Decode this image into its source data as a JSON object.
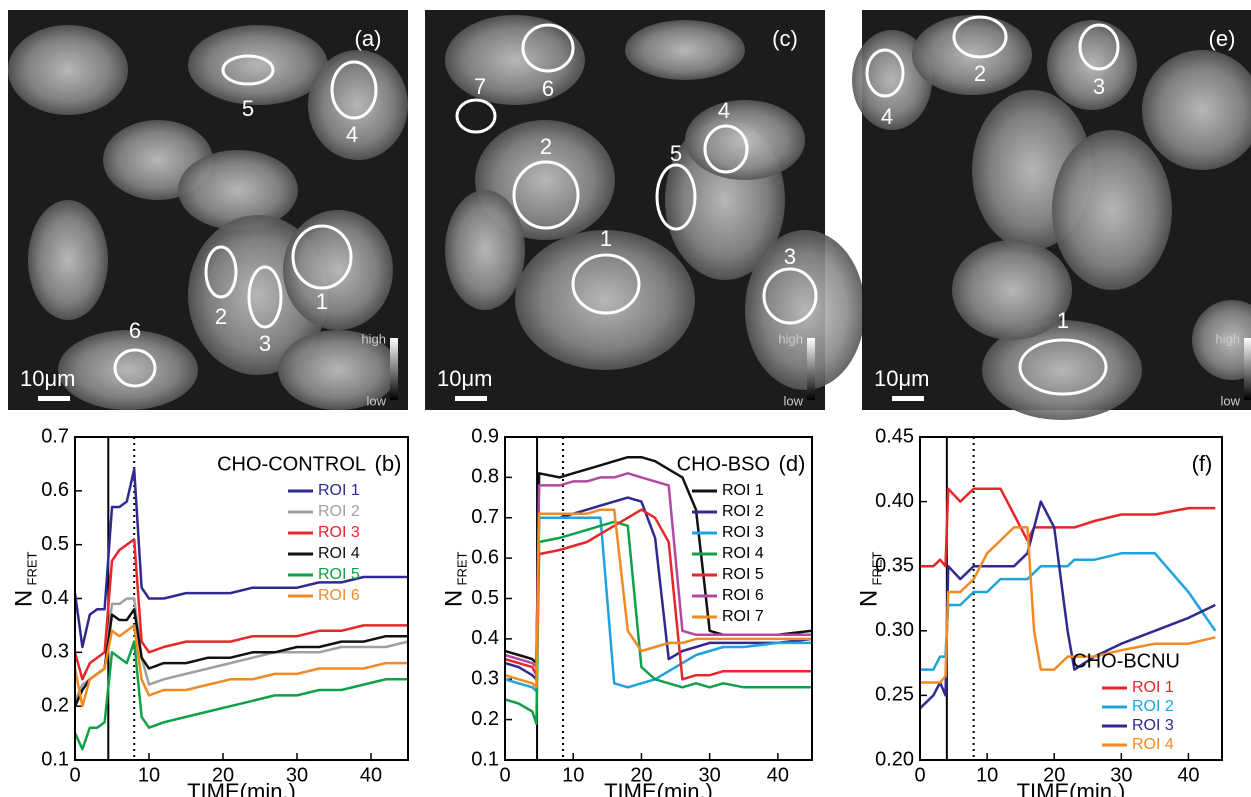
{
  "images": [
    {
      "label": "(a)",
      "rois": [
        "1",
        "2",
        "3",
        "4",
        "5",
        "6"
      ],
      "scale": "10μm",
      "high": "high",
      "low": "low"
    },
    {
      "label": "(c)",
      "rois": [
        "1",
        "2",
        "3",
        "4",
        "5",
        "6",
        "7"
      ],
      "scale": "10μm",
      "high": "high",
      "low": "low"
    },
    {
      "label": "(e)",
      "rois": [
        "1",
        "2",
        "3",
        "4"
      ],
      "scale": "10μm",
      "high": "high",
      "low": "low"
    }
  ],
  "chart_data": [
    {
      "type": "line",
      "panel": "(b)",
      "legend_title": "CHO-CONTROL",
      "legend": "upper right",
      "legend_text_color": null,
      "x_label": "TIME(min.)",
      "y_label": "N",
      "y_label_sub": "FRET",
      "xlim": [
        0,
        45
      ],
      "xticks": [
        0,
        10,
        20,
        30,
        40
      ],
      "ylim": [
        0.1,
        0.7
      ],
      "yticks": [
        0.1,
        0.2,
        0.3,
        0.4,
        0.5,
        0.6,
        0.7
      ],
      "vlines": [
        {
          "x": 4.5,
          "style": "solid"
        },
        {
          "x": 8,
          "style": "dotted"
        }
      ],
      "x": [
        0,
        1,
        2,
        3,
        4,
        5,
        6,
        7,
        8,
        9,
        10,
        12,
        15,
        18,
        21,
        24,
        27,
        30,
        33,
        36,
        39,
        42,
        45
      ],
      "series": [
        {
          "name": "ROI 1",
          "color": "#2e2a8f",
          "values": [
            0.41,
            0.31,
            0.37,
            0.38,
            0.38,
            0.57,
            0.57,
            0.58,
            0.64,
            0.42,
            0.4,
            0.4,
            0.41,
            0.41,
            0.41,
            0.42,
            0.42,
            0.42,
            0.43,
            0.43,
            0.44,
            0.44,
            0.44
          ]
        },
        {
          "name": "ROI 2",
          "color": "#a0a0a0",
          "values": [
            0.21,
            0.24,
            0.25,
            0.26,
            0.27,
            0.39,
            0.39,
            0.4,
            0.4,
            0.29,
            0.24,
            0.25,
            0.26,
            0.27,
            0.28,
            0.29,
            0.3,
            0.3,
            0.3,
            0.31,
            0.31,
            0.31,
            0.32
          ]
        },
        {
          "name": "ROI 3",
          "color": "#e8262a",
          "values": [
            0.3,
            0.25,
            0.28,
            0.29,
            0.3,
            0.47,
            0.49,
            0.5,
            0.51,
            0.32,
            0.3,
            0.31,
            0.32,
            0.32,
            0.32,
            0.33,
            0.33,
            0.33,
            0.34,
            0.34,
            0.35,
            0.35,
            0.35
          ]
        },
        {
          "name": "ROI 4",
          "color": "#111111",
          "values": [
            0.2,
            0.23,
            0.25,
            0.26,
            0.27,
            0.37,
            0.36,
            0.36,
            0.38,
            0.29,
            0.27,
            0.28,
            0.28,
            0.29,
            0.29,
            0.3,
            0.3,
            0.31,
            0.31,
            0.32,
            0.32,
            0.33,
            0.33
          ]
        },
        {
          "name": "ROI 5",
          "color": "#10a04a",
          "values": [
            0.15,
            0.12,
            0.16,
            0.16,
            0.17,
            0.3,
            0.29,
            0.28,
            0.32,
            0.18,
            0.16,
            0.17,
            0.18,
            0.19,
            0.2,
            0.21,
            0.22,
            0.22,
            0.23,
            0.23,
            0.24,
            0.25,
            0.25
          ]
        },
        {
          "name": "ROI 6",
          "color": "#f28a24",
          "values": [
            0.27,
            0.2,
            0.25,
            0.26,
            0.27,
            0.34,
            0.33,
            0.34,
            0.35,
            0.25,
            0.22,
            0.23,
            0.23,
            0.24,
            0.25,
            0.25,
            0.26,
            0.26,
            0.27,
            0.27,
            0.27,
            0.28,
            0.28
          ]
        }
      ]
    },
    {
      "type": "line",
      "panel": "(d)",
      "legend_title": "CHO-BSO",
      "legend": "upper right",
      "legend_text_color": "#000000",
      "x_label": "TIME(min.)",
      "y_label": "N",
      "y_label_sub": "FRET",
      "xlim": [
        0,
        45
      ],
      "xticks": [
        0,
        10,
        20,
        30,
        40
      ],
      "ylim": [
        0.1,
        0.9
      ],
      "yticks": [
        0.1,
        0.2,
        0.3,
        0.4,
        0.5,
        0.6,
        0.7,
        0.8,
        0.9
      ],
      "vlines": [
        {
          "x": 4.7,
          "style": "solid"
        },
        {
          "x": 8.5,
          "style": "dotted"
        }
      ],
      "x": [
        0,
        2,
        4,
        4.6,
        5,
        8,
        10,
        12,
        14,
        16,
        18,
        20,
        22,
        24,
        26,
        28,
        30,
        32,
        35,
        40,
        45
      ],
      "series": [
        {
          "name": "ROI 1",
          "color": "#111111",
          "values": [
            0.37,
            0.36,
            0.35,
            0.34,
            0.81,
            0.8,
            0.81,
            0.82,
            0.83,
            0.84,
            0.85,
            0.85,
            0.84,
            0.82,
            0.8,
            0.72,
            0.42,
            0.41,
            0.41,
            0.41,
            0.42
          ]
        },
        {
          "name": "ROI 2",
          "color": "#2e2a8f",
          "values": [
            0.34,
            0.33,
            0.31,
            0.3,
            0.7,
            0.7,
            0.71,
            0.72,
            0.73,
            0.74,
            0.75,
            0.74,
            0.65,
            0.35,
            0.37,
            0.38,
            0.39,
            0.39,
            0.39,
            0.39,
            0.4
          ]
        },
        {
          "name": "ROI 3",
          "color": "#1ea3dc",
          "values": [
            0.3,
            0.29,
            0.28,
            0.27,
            0.7,
            0.7,
            0.7,
            0.7,
            0.7,
            0.29,
            0.28,
            0.29,
            0.3,
            0.32,
            0.34,
            0.36,
            0.37,
            0.38,
            0.38,
            0.39,
            0.39
          ]
        },
        {
          "name": "ROI 4",
          "color": "#10a04a",
          "values": [
            0.25,
            0.24,
            0.22,
            0.19,
            0.64,
            0.65,
            0.66,
            0.67,
            0.68,
            0.69,
            0.68,
            0.33,
            0.3,
            0.29,
            0.28,
            0.29,
            0.28,
            0.29,
            0.28,
            0.28,
            0.28
          ]
        },
        {
          "name": "ROI 5",
          "color": "#e8262a",
          "values": [
            0.35,
            0.34,
            0.33,
            0.31,
            0.61,
            0.62,
            0.63,
            0.64,
            0.66,
            0.68,
            0.7,
            0.72,
            0.7,
            0.64,
            0.3,
            0.31,
            0.31,
            0.32,
            0.32,
            0.32,
            0.32
          ]
        },
        {
          "name": "ROI 6",
          "color": "#b04aa0",
          "values": [
            0.36,
            0.35,
            0.34,
            0.33,
            0.78,
            0.78,
            0.79,
            0.79,
            0.8,
            0.8,
            0.81,
            0.8,
            0.79,
            0.78,
            0.42,
            0.41,
            0.41,
            0.41,
            0.41,
            0.41,
            0.41
          ]
        },
        {
          "name": "ROI 7",
          "color": "#f28a24",
          "values": [
            0.31,
            0.3,
            0.29,
            0.28,
            0.71,
            0.71,
            0.71,
            0.71,
            0.72,
            0.72,
            0.42,
            0.37,
            0.38,
            0.39,
            0.39,
            0.4,
            0.4,
            0.4,
            0.4,
            0.4,
            0.4
          ]
        }
      ]
    },
    {
      "type": "line",
      "panel": "(f)",
      "legend_title": "CHO-BCNU",
      "legend": "lower right",
      "legend_text_color": null,
      "x_label": "TIME(min.)",
      "y_label": "N",
      "y_label_sub": "FRET",
      "xlim": [
        0,
        45
      ],
      "xticks": [
        0,
        10,
        20,
        30,
        40
      ],
      "ylim": [
        0.2,
        0.45
      ],
      "yticks": [
        {
          "value": 0.2,
          "label": "0.20"
        },
        {
          "value": 0.25,
          "label": "0.25"
        },
        {
          "value": 0.3,
          "label": "0.30"
        },
        {
          "value": 0.35,
          "label": "0.35"
        },
        {
          "value": 0.4,
          "label": "0.40"
        },
        {
          "value": 0.45,
          "label": "0.45"
        }
      ],
      "vlines": [
        {
          "x": 4,
          "style": "solid"
        },
        {
          "x": 8,
          "style": "dotted"
        }
      ],
      "x": [
        0,
        2,
        3,
        3.8,
        4.2,
        6,
        8,
        10,
        12,
        14,
        16,
        17,
        18,
        20,
        22,
        23,
        26,
        30,
        35,
        40,
        44
      ],
      "series": [
        {
          "name": "ROI 1",
          "color": "#e8262a",
          "values": [
            0.35,
            0.35,
            0.355,
            0.35,
            0.41,
            0.4,
            0.41,
            0.41,
            0.41,
            0.39,
            0.37,
            0.38,
            0.38,
            0.38,
            0.38,
            0.38,
            0.385,
            0.39,
            0.39,
            0.395,
            0.395
          ]
        },
        {
          "name": "ROI 2",
          "color": "#1ea3dc",
          "values": [
            0.27,
            0.27,
            0.28,
            0.28,
            0.32,
            0.32,
            0.33,
            0.33,
            0.34,
            0.34,
            0.34,
            0.345,
            0.35,
            0.35,
            0.35,
            0.355,
            0.355,
            0.36,
            0.36,
            0.33,
            0.3
          ]
        },
        {
          "name": "ROI 3",
          "color": "#2e2a8f",
          "values": [
            0.24,
            0.25,
            0.26,
            0.25,
            0.35,
            0.34,
            0.35,
            0.35,
            0.35,
            0.35,
            0.36,
            0.38,
            0.4,
            0.38,
            0.3,
            0.27,
            0.28,
            0.29,
            0.3,
            0.31,
            0.32
          ]
        },
        {
          "name": "ROI 4",
          "color": "#f28a24",
          "values": [
            0.26,
            0.26,
            0.26,
            0.265,
            0.33,
            0.33,
            0.34,
            0.36,
            0.37,
            0.38,
            0.38,
            0.3,
            0.27,
            0.27,
            0.28,
            0.28,
            0.28,
            0.285,
            0.29,
            0.29,
            0.295
          ]
        }
      ]
    }
  ]
}
